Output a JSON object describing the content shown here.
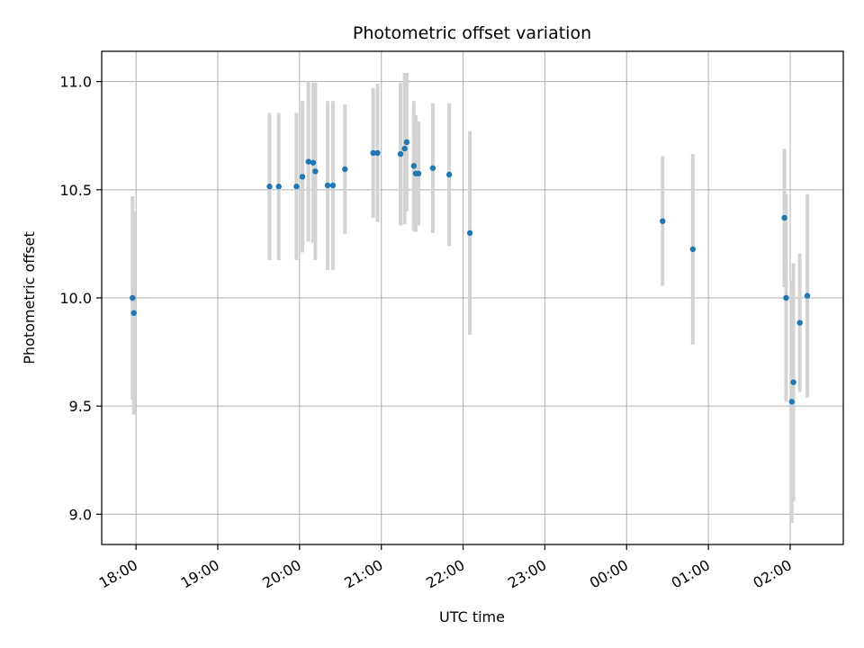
{
  "chart_data": {
    "type": "scatter",
    "title": "Photometric offset variation",
    "xlabel": "UTC time",
    "ylabel": "Photometric offset",
    "x_unit": "hours since 17:00 UTC",
    "xlim": [
      0.58,
      9.65
    ],
    "ylim": [
      8.86,
      11.14
    ],
    "grid": true,
    "x_ticks": [
      {
        "value": 1,
        "label": "18:00"
      },
      {
        "value": 2,
        "label": "19:00"
      },
      {
        "value": 3,
        "label": "20:00"
      },
      {
        "value": 4,
        "label": "21:00"
      },
      {
        "value": 5,
        "label": "22:00"
      },
      {
        "value": 6,
        "label": "23:00"
      },
      {
        "value": 7,
        "label": "00:00"
      },
      {
        "value": 8,
        "label": "01:00"
      },
      {
        "value": 9,
        "label": "02:00"
      }
    ],
    "y_ticks": [
      {
        "value": 9.0,
        "label": "9.0"
      },
      {
        "value": 9.5,
        "label": "9.5"
      },
      {
        "value": 10.0,
        "label": "10.0"
      },
      {
        "value": 10.5,
        "label": "10.5"
      },
      {
        "value": 11.0,
        "label": "11.0"
      }
    ],
    "marker_color": "#1f77b4",
    "errorbar_color": "#d3d3d3",
    "points": [
      {
        "x": 0.957,
        "y": 10.0,
        "err": 0.47
      },
      {
        "x": 0.973,
        "y": 9.93,
        "err": 0.47
      },
      {
        "x": 2.633,
        "y": 10.515,
        "err": 0.34
      },
      {
        "x": 2.745,
        "y": 10.515,
        "err": 0.34
      },
      {
        "x": 2.962,
        "y": 10.515,
        "err": 0.34
      },
      {
        "x": 3.035,
        "y": 10.56,
        "err": 0.35
      },
      {
        "x": 3.108,
        "y": 10.63,
        "err": 0.37
      },
      {
        "x": 3.167,
        "y": 10.625,
        "err": 0.37
      },
      {
        "x": 3.193,
        "y": 10.585,
        "err": 0.41
      },
      {
        "x": 3.343,
        "y": 10.52,
        "err": 0.39
      },
      {
        "x": 3.408,
        "y": 10.52,
        "err": 0.39
      },
      {
        "x": 3.555,
        "y": 10.595,
        "err": 0.3
      },
      {
        "x": 3.9,
        "y": 10.67,
        "err": 0.3
      },
      {
        "x": 3.953,
        "y": 10.67,
        "err": 0.32
      },
      {
        "x": 4.235,
        "y": 10.665,
        "err": 0.33
      },
      {
        "x": 4.285,
        "y": 10.69,
        "err": 0.35
      },
      {
        "x": 4.31,
        "y": 10.72,
        "err": 0.32
      },
      {
        "x": 4.397,
        "y": 10.61,
        "err": 0.3
      },
      {
        "x": 4.42,
        "y": 10.575,
        "err": 0.27
      },
      {
        "x": 4.455,
        "y": 10.575,
        "err": 0.24
      },
      {
        "x": 4.63,
        "y": 10.6,
        "err": 0.3
      },
      {
        "x": 4.83,
        "y": 10.57,
        "err": 0.33
      },
      {
        "x": 5.083,
        "y": 10.3,
        "err": 0.47
      },
      {
        "x": 7.44,
        "y": 10.355,
        "err": 0.3
      },
      {
        "x": 7.81,
        "y": 10.225,
        "err": 0.44
      },
      {
        "x": 8.93,
        "y": 10.37,
        "err": 0.32
      },
      {
        "x": 8.95,
        "y": 10.0,
        "err": 0.48
      },
      {
        "x": 9.02,
        "y": 9.52,
        "err": 0.56
      },
      {
        "x": 9.04,
        "y": 9.61,
        "err": 0.55
      },
      {
        "x": 9.118,
        "y": 9.885,
        "err": 0.32
      },
      {
        "x": 9.21,
        "y": 10.01,
        "err": 0.47
      }
    ]
  }
}
